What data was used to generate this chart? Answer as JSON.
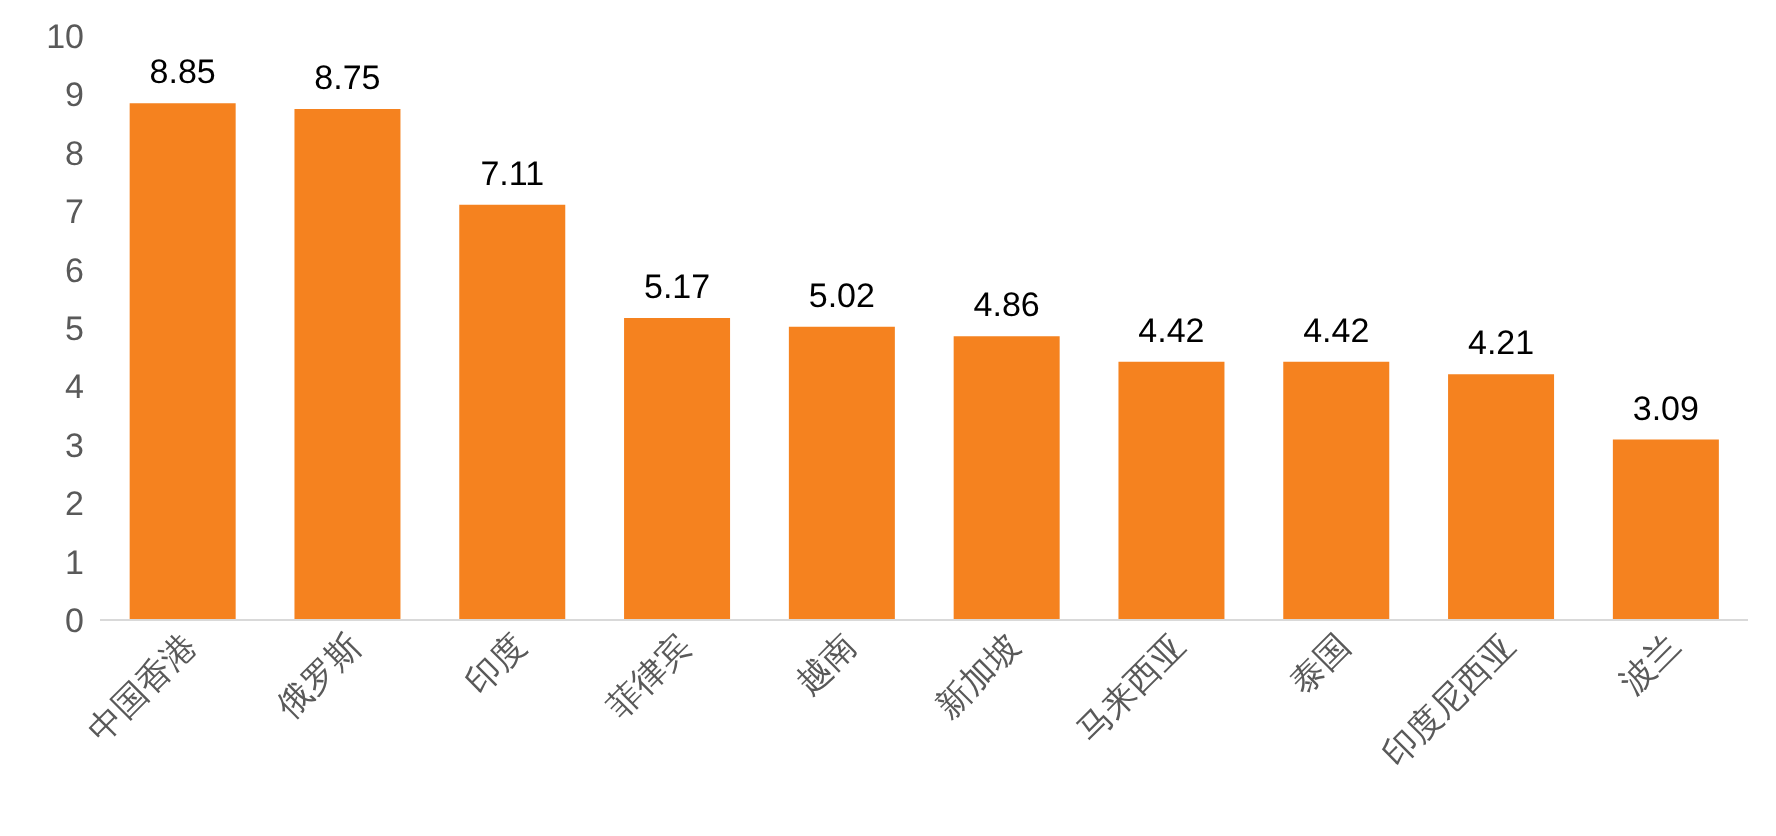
{
  "chart_data": {
    "type": "bar",
    "categories": [
      "中国香港",
      "俄罗斯",
      "印度",
      "菲律宾",
      "越南",
      "新加坡",
      "马来西亚",
      "泰国",
      "印度尼西亚",
      "波兰"
    ],
    "values": [
      8.85,
      8.75,
      7.11,
      5.17,
      5.02,
      4.86,
      4.42,
      4.42,
      4.21,
      3.09
    ],
    "color": "#f5821f",
    "ylim": [
      0,
      10
    ],
    "yticks": [
      0,
      1,
      2,
      3,
      4,
      5,
      6,
      7,
      8,
      9,
      10
    ],
    "grid": false,
    "data_labels": true
  }
}
